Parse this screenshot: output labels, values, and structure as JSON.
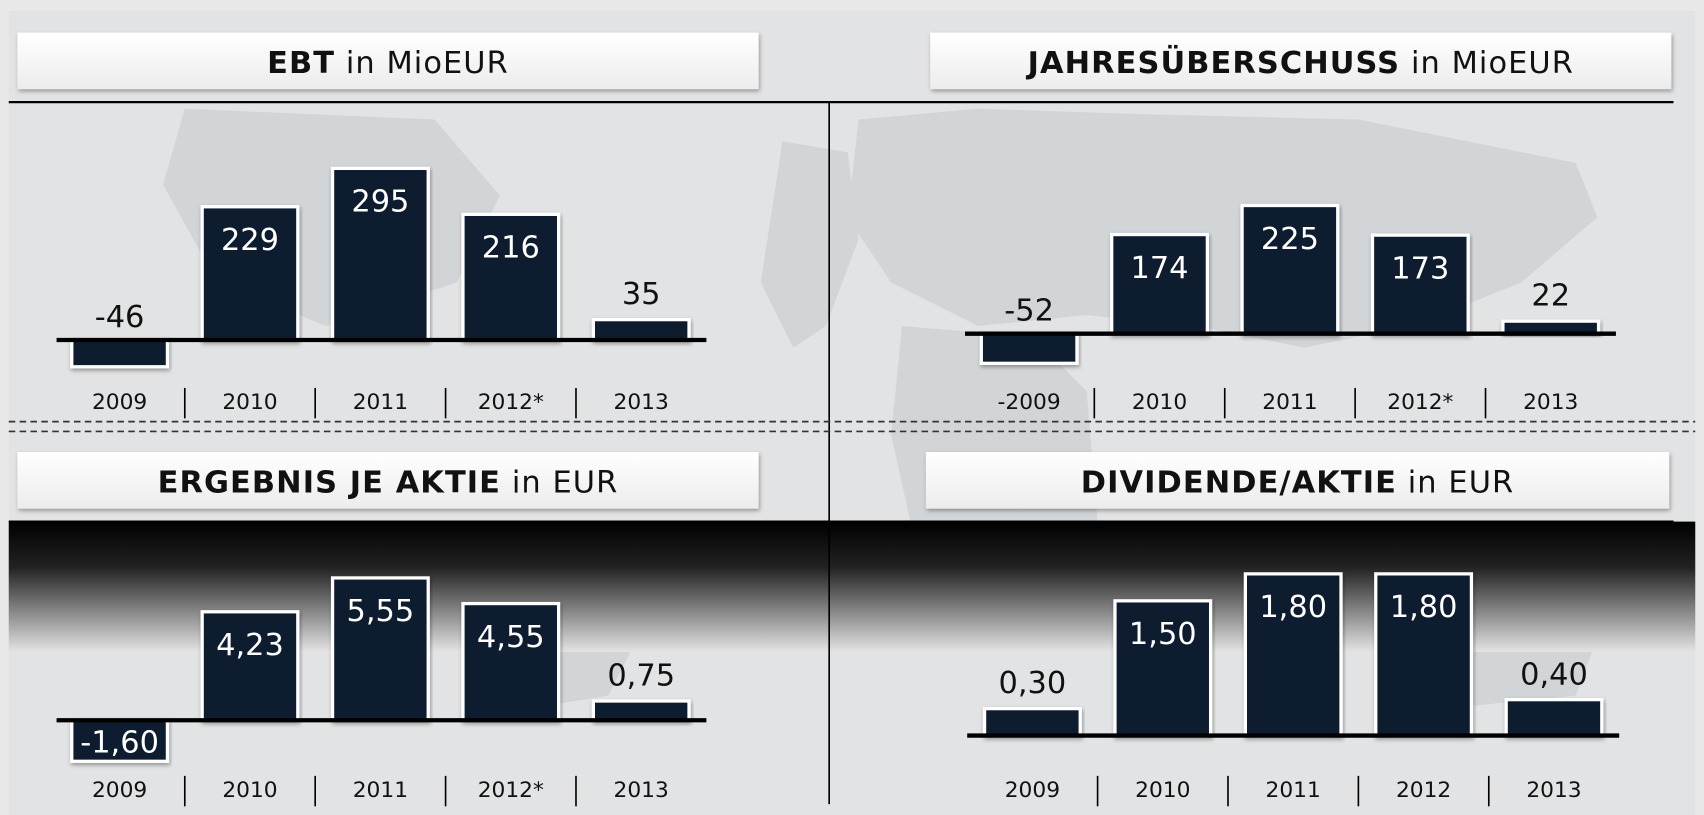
{
  "chart_data": [
    {
      "type": "bar",
      "title": "EBT",
      "unit": "in MioEUR",
      "color": "#0b1a2e",
      "categories": [
        "2009",
        "2010",
        "2011",
        "2012*",
        "2013"
      ],
      "values": [
        -46,
        229,
        295,
        216,
        35
      ],
      "ylim": [
        -88,
        379
      ]
    },
    {
      "type": "bar",
      "title": "JAHRESÜBERSCHUSS",
      "unit": "in MioEUR",
      "color": "#0b1a2e",
      "categories": [
        "-2009",
        "2010",
        "2011",
        "2012*",
        "2013"
      ],
      "values": [
        -52,
        174,
        225,
        173,
        22
      ],
      "ylim": [
        -101,
        376
      ]
    },
    {
      "type": "bar",
      "title": "ERGEBNIS JE AKTIE",
      "unit": "in EUR",
      "color": "#0b1a2e",
      "categories": [
        "2009",
        "2010",
        "2011",
        "2012*",
        "2013"
      ],
      "values": [
        -1.6,
        4.23,
        5.55,
        4.55,
        0.75
      ],
      "value_labels": [
        "-1,60",
        "4,23",
        "5,55",
        "4,55",
        "0,75"
      ],
      "ylim": [
        -2.0,
        6.9
      ]
    },
    {
      "type": "bar",
      "title": "DIVIDENDE/AKTIE",
      "unit": "in EUR",
      "color": "#0b1a2e",
      "categories": [
        "2009",
        "2010",
        "2011",
        "2012",
        "2013"
      ],
      "values": [
        0.3,
        1.5,
        1.8,
        1.8,
        0.4
      ],
      "value_labels": [
        "0,30",
        "1,50",
        "1,80",
        "1,80",
        "0,40"
      ],
      "ylim": [
        -0.4,
        2.14
      ]
    }
  ]
}
